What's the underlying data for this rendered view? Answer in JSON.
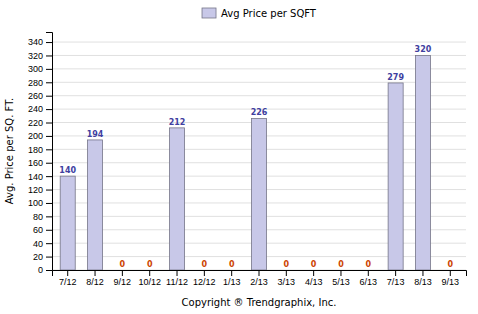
{
  "chart_data": {
    "type": "bar",
    "categories": [
      "7/12",
      "8/12",
      "9/12",
      "10/12",
      "11/12",
      "12/12",
      "1/13",
      "2/13",
      "3/13",
      "4/13",
      "5/13",
      "6/13",
      "7/13",
      "8/13",
      "9/13"
    ],
    "series": [
      {
        "name": "Avg Price per SQFT",
        "color": "#c8c8e8",
        "values": [
          140,
          194,
          0,
          0,
          212,
          0,
          0,
          226,
          0,
          0,
          0,
          0,
          279,
          320,
          0
        ]
      }
    ],
    "xlabel": "Copyright ® Trendgraphix, Inc.",
    "ylabel": "Avg. Price per SQ. FT.",
    "ylim": [
      0,
      355
    ],
    "yticks": [
      0,
      20,
      40,
      60,
      80,
      100,
      120,
      140,
      160,
      180,
      200,
      220,
      240,
      260,
      280,
      300,
      320,
      340
    ],
    "grid": true,
    "legend": "top",
    "data_labels": true
  }
}
